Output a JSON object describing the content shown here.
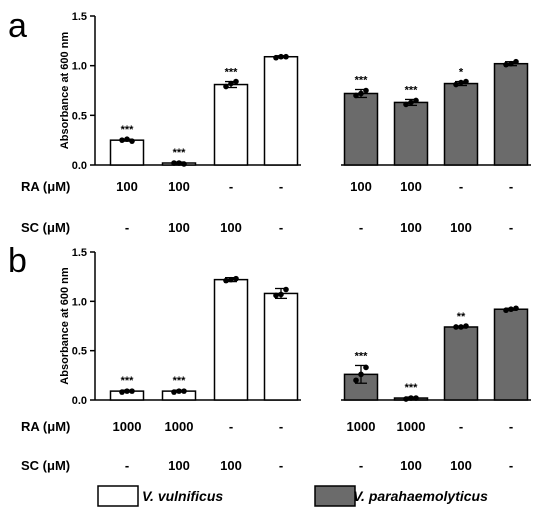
{
  "chart_data": [
    {
      "panel_label": "a",
      "type": "bar",
      "ylabel": "Absorbance at 600 nm",
      "ylim": [
        0,
        1.5
      ],
      "yticks": [
        "0.0",
        "0.5",
        "1.0",
        "1.5"
      ],
      "yticks_values": [
        0,
        0.5,
        1.0,
        1.5
      ],
      "series": [
        {
          "name": "V. vulnificus",
          "color": "#ffffff",
          "values": [
            0.25,
            0.02,
            0.81,
            1.09
          ],
          "error": [
            0.01,
            0.01,
            0.03,
            0.01
          ],
          "points": [
            [
              0.25,
              0.26,
              0.24
            ],
            [
              0.02,
              0.02,
              0.01
            ],
            [
              0.79,
              0.82,
              0.84
            ],
            [
              1.08,
              1.09,
              1.09
            ]
          ],
          "significance": [
            "***",
            "***",
            "***",
            ""
          ]
        },
        {
          "name": "V. parahaemolyticus",
          "color": "#6b6b6b",
          "values": [
            0.72,
            0.63,
            0.82,
            1.02
          ],
          "error": [
            0.04,
            0.03,
            0.02,
            0.02
          ],
          "points": [
            [
              0.7,
              0.72,
              0.75
            ],
            [
              0.61,
              0.63,
              0.65
            ],
            [
              0.81,
              0.83,
              0.84
            ],
            [
              1.01,
              1.02,
              1.04
            ]
          ],
          "significance": [
            "***",
            "***",
            "*",
            ""
          ]
        }
      ],
      "condition_rows": [
        {
          "label": "RA (μM)",
          "values": [
            "100",
            "100",
            "-",
            "-",
            "100",
            "100",
            "-",
            "-"
          ]
        },
        {
          "label": "SC (μM)",
          "values": [
            "-",
            "100",
            "100",
            "-",
            "-",
            "100",
            "100",
            "-"
          ]
        }
      ]
    },
    {
      "panel_label": "b",
      "type": "bar",
      "ylabel": "Absorbance at 600 nm",
      "ylim": [
        0,
        1.5
      ],
      "yticks": [
        "0.0",
        "0.5",
        "1.0",
        "1.5"
      ],
      "yticks_values": [
        0,
        0.5,
        1.0,
        1.5
      ],
      "series": [
        {
          "name": "V. vulnificus",
          "color": "#ffffff",
          "values": [
            0.09,
            0.09,
            1.22,
            1.08
          ],
          "error": [
            0.01,
            0.01,
            0.02,
            0.05
          ],
          "points": [
            [
              0.08,
              0.09,
              0.09
            ],
            [
              0.08,
              0.09,
              0.09
            ],
            [
              1.21,
              1.22,
              1.23
            ],
            [
              1.06,
              1.07,
              1.12
            ]
          ],
          "significance": [
            "***",
            "***",
            "",
            ""
          ]
        },
        {
          "name": "V. parahaemolyticus",
          "color": "#6b6b6b",
          "values": [
            0.26,
            0.02,
            0.74,
            0.92
          ],
          "error": [
            0.09,
            0.01,
            0.01,
            0.01
          ],
          "points": [
            [
              0.2,
              0.26,
              0.33
            ],
            [
              0.01,
              0.02,
              0.02
            ],
            [
              0.74,
              0.74,
              0.75
            ],
            [
              0.91,
              0.92,
              0.93
            ]
          ],
          "significance": [
            "***",
            "***",
            "**",
            ""
          ]
        }
      ],
      "condition_rows": [
        {
          "label": "RA (μM)",
          "values": [
            "1000",
            "1000",
            "-",
            "-",
            "1000",
            "1000",
            "-",
            "-"
          ]
        },
        {
          "label": "SC (μM)",
          "values": [
            "-",
            "100",
            "100",
            "-",
            "-",
            "100",
            "100",
            "-"
          ]
        }
      ]
    }
  ],
  "legend": [
    {
      "label": "V. vulnificus",
      "color": "#ffffff"
    },
    {
      "label": "V. parahaemolyticus",
      "color": "#6b6b6b"
    }
  ]
}
